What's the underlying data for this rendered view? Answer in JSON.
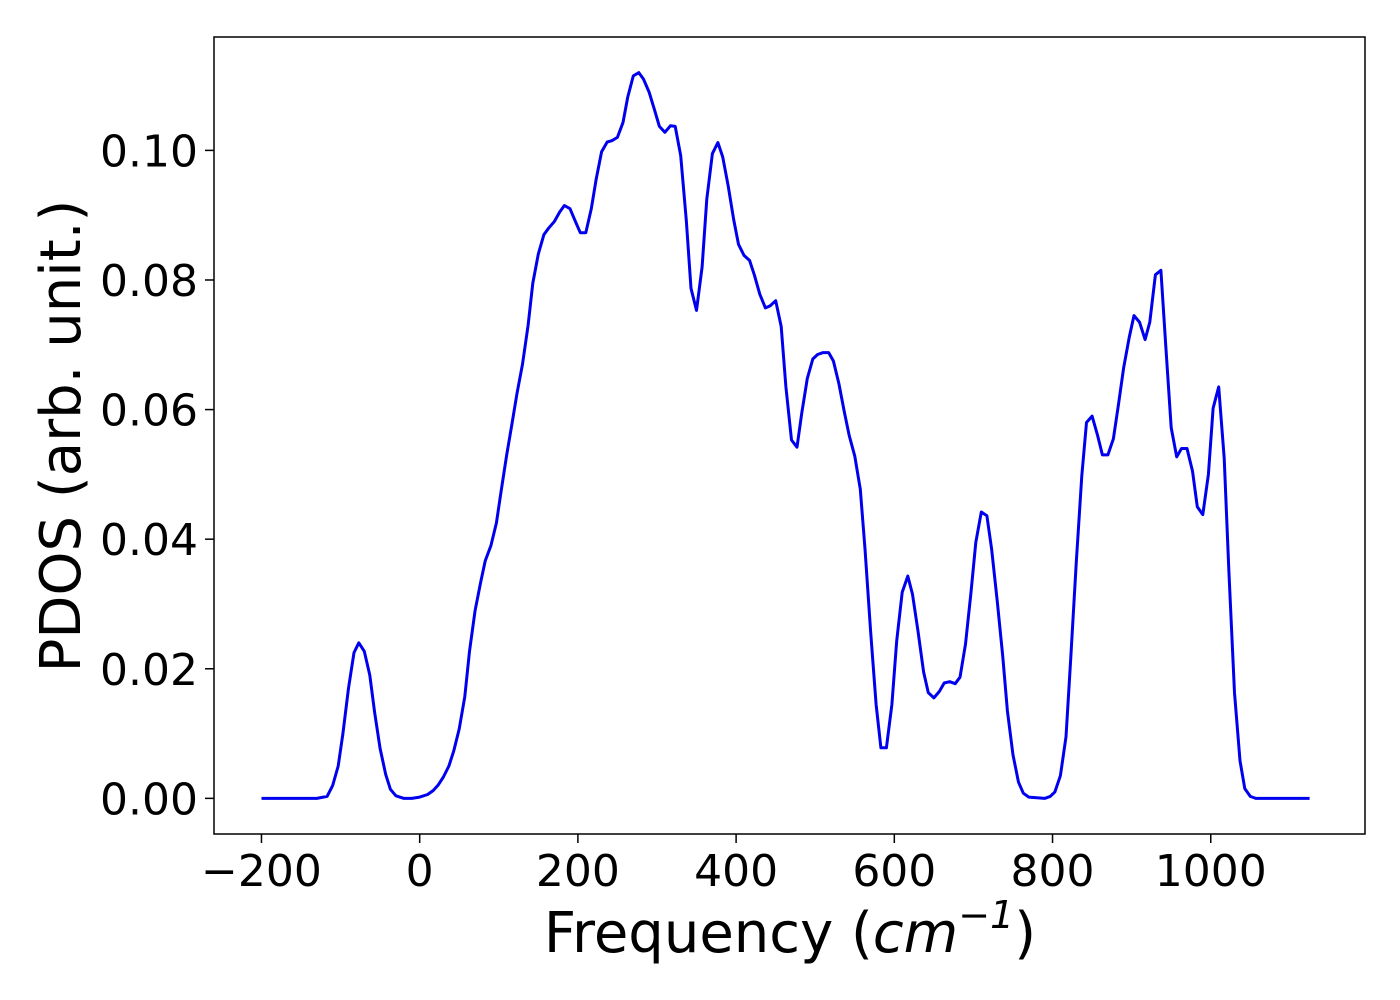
{
  "chart_data": {
    "type": "line",
    "xlabel": {
      "prefix": "Frequency (",
      "unit_base": "cm",
      "unit_exponent": "−1",
      "suffix": ")"
    },
    "ylabel": "PDOS (arb. unit.)",
    "xlim": [
      -260,
      1195
    ],
    "ylim": [
      -0.0055,
      0.1175
    ],
    "x_ticks": [
      -200,
      0,
      200,
      400,
      600,
      800,
      1000
    ],
    "x_tick_labels": [
      "−200",
      "0",
      "200",
      "400",
      "600",
      "800",
      "1000"
    ],
    "y_ticks": [
      0.0,
      0.02,
      0.04,
      0.06,
      0.08,
      0.1
    ],
    "y_tick_labels": [
      "0.00",
      "0.02",
      "0.04",
      "0.06",
      "0.08",
      "0.10"
    ],
    "grid": false,
    "series": [
      {
        "color": "#0000ee",
        "points": [
          [
            -200,
            0.0
          ],
          [
            -130,
            0.0
          ],
          [
            -117,
            0.0003
          ],
          [
            -110,
            0.002
          ],
          [
            -103,
            0.005
          ],
          [
            -97,
            0.01
          ],
          [
            -90,
            0.017
          ],
          [
            -83,
            0.0225
          ],
          [
            -77,
            0.024
          ],
          [
            -70,
            0.0227
          ],
          [
            -63,
            0.019
          ],
          [
            -57,
            0.0133
          ],
          [
            -50,
            0.0077
          ],
          [
            -43,
            0.0037
          ],
          [
            -37,
            0.0014
          ],
          [
            -30,
            0.0004
          ],
          [
            -20,
            0.0
          ],
          [
            -10,
            0.0
          ],
          [
            0,
            0.0002
          ],
          [
            10,
            0.0006
          ],
          [
            17,
            0.0012
          ],
          [
            23,
            0.002
          ],
          [
            30,
            0.0033
          ],
          [
            37,
            0.005
          ],
          [
            43,
            0.0073
          ],
          [
            50,
            0.0107
          ],
          [
            57,
            0.0157
          ],
          [
            63,
            0.0227
          ],
          [
            70,
            0.029
          ],
          [
            77,
            0.0333
          ],
          [
            83,
            0.0367
          ],
          [
            90,
            0.039
          ],
          [
            97,
            0.0425
          ],
          [
            103,
            0.0475
          ],
          [
            110,
            0.053
          ],
          [
            117,
            0.058
          ],
          [
            123,
            0.0625
          ],
          [
            130,
            0.067
          ],
          [
            137,
            0.073
          ],
          [
            143,
            0.0795
          ],
          [
            150,
            0.084
          ],
          [
            157,
            0.087
          ],
          [
            163,
            0.088
          ],
          [
            170,
            0.089
          ],
          [
            177,
            0.0905
          ],
          [
            183,
            0.0915
          ],
          [
            190,
            0.091
          ],
          [
            197,
            0.089
          ],
          [
            203,
            0.0873
          ],
          [
            210,
            0.0873
          ],
          [
            217,
            0.091
          ],
          [
            223,
            0.0955
          ],
          [
            230,
            0.0998
          ],
          [
            237,
            0.1013
          ],
          [
            243,
            0.1015
          ],
          [
            250,
            0.102
          ],
          [
            257,
            0.1043
          ],
          [
            263,
            0.1082
          ],
          [
            270,
            0.1115
          ],
          [
            277,
            0.112
          ],
          [
            283,
            0.111
          ],
          [
            290,
            0.109
          ],
          [
            297,
            0.1062
          ],
          [
            303,
            0.1037
          ],
          [
            310,
            0.1028
          ],
          [
            317,
            0.1038
          ],
          [
            323,
            0.1037
          ],
          [
            330,
            0.0992
          ],
          [
            337,
            0.0892
          ],
          [
            343,
            0.0787
          ],
          [
            350,
            0.0753
          ],
          [
            357,
            0.082
          ],
          [
            363,
            0.0925
          ],
          [
            370,
            0.0995
          ],
          [
            377,
            0.1012
          ],
          [
            383,
            0.099
          ],
          [
            390,
            0.0945
          ],
          [
            397,
            0.0893
          ],
          [
            403,
            0.0855
          ],
          [
            410,
            0.0838
          ],
          [
            417,
            0.083
          ],
          [
            423,
            0.0808
          ],
          [
            430,
            0.0778
          ],
          [
            437,
            0.0757
          ],
          [
            443,
            0.076
          ],
          [
            450,
            0.0768
          ],
          [
            457,
            0.0728
          ],
          [
            463,
            0.0635
          ],
          [
            470,
            0.0553
          ],
          [
            477,
            0.0542
          ],
          [
            483,
            0.0595
          ],
          [
            490,
            0.0648
          ],
          [
            497,
            0.0678
          ],
          [
            503,
            0.0685
          ],
          [
            510,
            0.0688
          ],
          [
            517,
            0.0688
          ],
          [
            523,
            0.0675
          ],
          [
            530,
            0.064
          ],
          [
            537,
            0.0595
          ],
          [
            543,
            0.056
          ],
          [
            550,
            0.0528
          ],
          [
            557,
            0.0477
          ],
          [
            563,
            0.0385
          ],
          [
            570,
            0.0258
          ],
          [
            577,
            0.0145
          ],
          [
            583,
            0.0078
          ],
          [
            590,
            0.0078
          ],
          [
            597,
            0.0145
          ],
          [
            603,
            0.0243
          ],
          [
            610,
            0.0318
          ],
          [
            617,
            0.0343
          ],
          [
            623,
            0.0315
          ],
          [
            630,
            0.0258
          ],
          [
            637,
            0.0195
          ],
          [
            643,
            0.0163
          ],
          [
            650,
            0.0155
          ],
          [
            657,
            0.0165
          ],
          [
            663,
            0.0178
          ],
          [
            670,
            0.018
          ],
          [
            677,
            0.0177
          ],
          [
            683,
            0.0187
          ],
          [
            690,
            0.0238
          ],
          [
            697,
            0.0318
          ],
          [
            703,
            0.0395
          ],
          [
            710,
            0.0442
          ],
          [
            717,
            0.0436
          ],
          [
            723,
            0.0385
          ],
          [
            730,
            0.0305
          ],
          [
            737,
            0.022
          ],
          [
            743,
            0.0135
          ],
          [
            750,
            0.0067
          ],
          [
            757,
            0.0025
          ],
          [
            763,
            0.0008
          ],
          [
            770,
            0.0002
          ],
          [
            790,
            0.0
          ],
          [
            797,
            0.0003
          ],
          [
            803,
            0.001
          ],
          [
            810,
            0.0035
          ],
          [
            817,
            0.0095
          ],
          [
            823,
            0.0215
          ],
          [
            830,
            0.0365
          ],
          [
            837,
            0.0498
          ],
          [
            843,
            0.058
          ],
          [
            850,
            0.059
          ],
          [
            857,
            0.056
          ],
          [
            863,
            0.053
          ],
          [
            870,
            0.053
          ],
          [
            877,
            0.0555
          ],
          [
            883,
            0.0605
          ],
          [
            890,
            0.0665
          ],
          [
            897,
            0.0712
          ],
          [
            903,
            0.0745
          ],
          [
            910,
            0.0735
          ],
          [
            917,
            0.0708
          ],
          [
            923,
            0.0735
          ],
          [
            930,
            0.0808
          ],
          [
            937,
            0.0815
          ],
          [
            943,
            0.07
          ],
          [
            950,
            0.0572
          ],
          [
            957,
            0.0527
          ],
          [
            963,
            0.054
          ],
          [
            970,
            0.054
          ],
          [
            977,
            0.0505
          ],
          [
            983,
            0.045
          ],
          [
            990,
            0.0438
          ],
          [
            997,
            0.05
          ],
          [
            1003,
            0.0602
          ],
          [
            1010,
            0.0635
          ],
          [
            1017,
            0.0525
          ],
          [
            1023,
            0.035
          ],
          [
            1030,
            0.0163
          ],
          [
            1037,
            0.0058
          ],
          [
            1043,
            0.0015
          ],
          [
            1050,
            0.0003
          ],
          [
            1057,
            0.0
          ],
          [
            1125,
            0.0
          ]
        ]
      }
    ]
  }
}
